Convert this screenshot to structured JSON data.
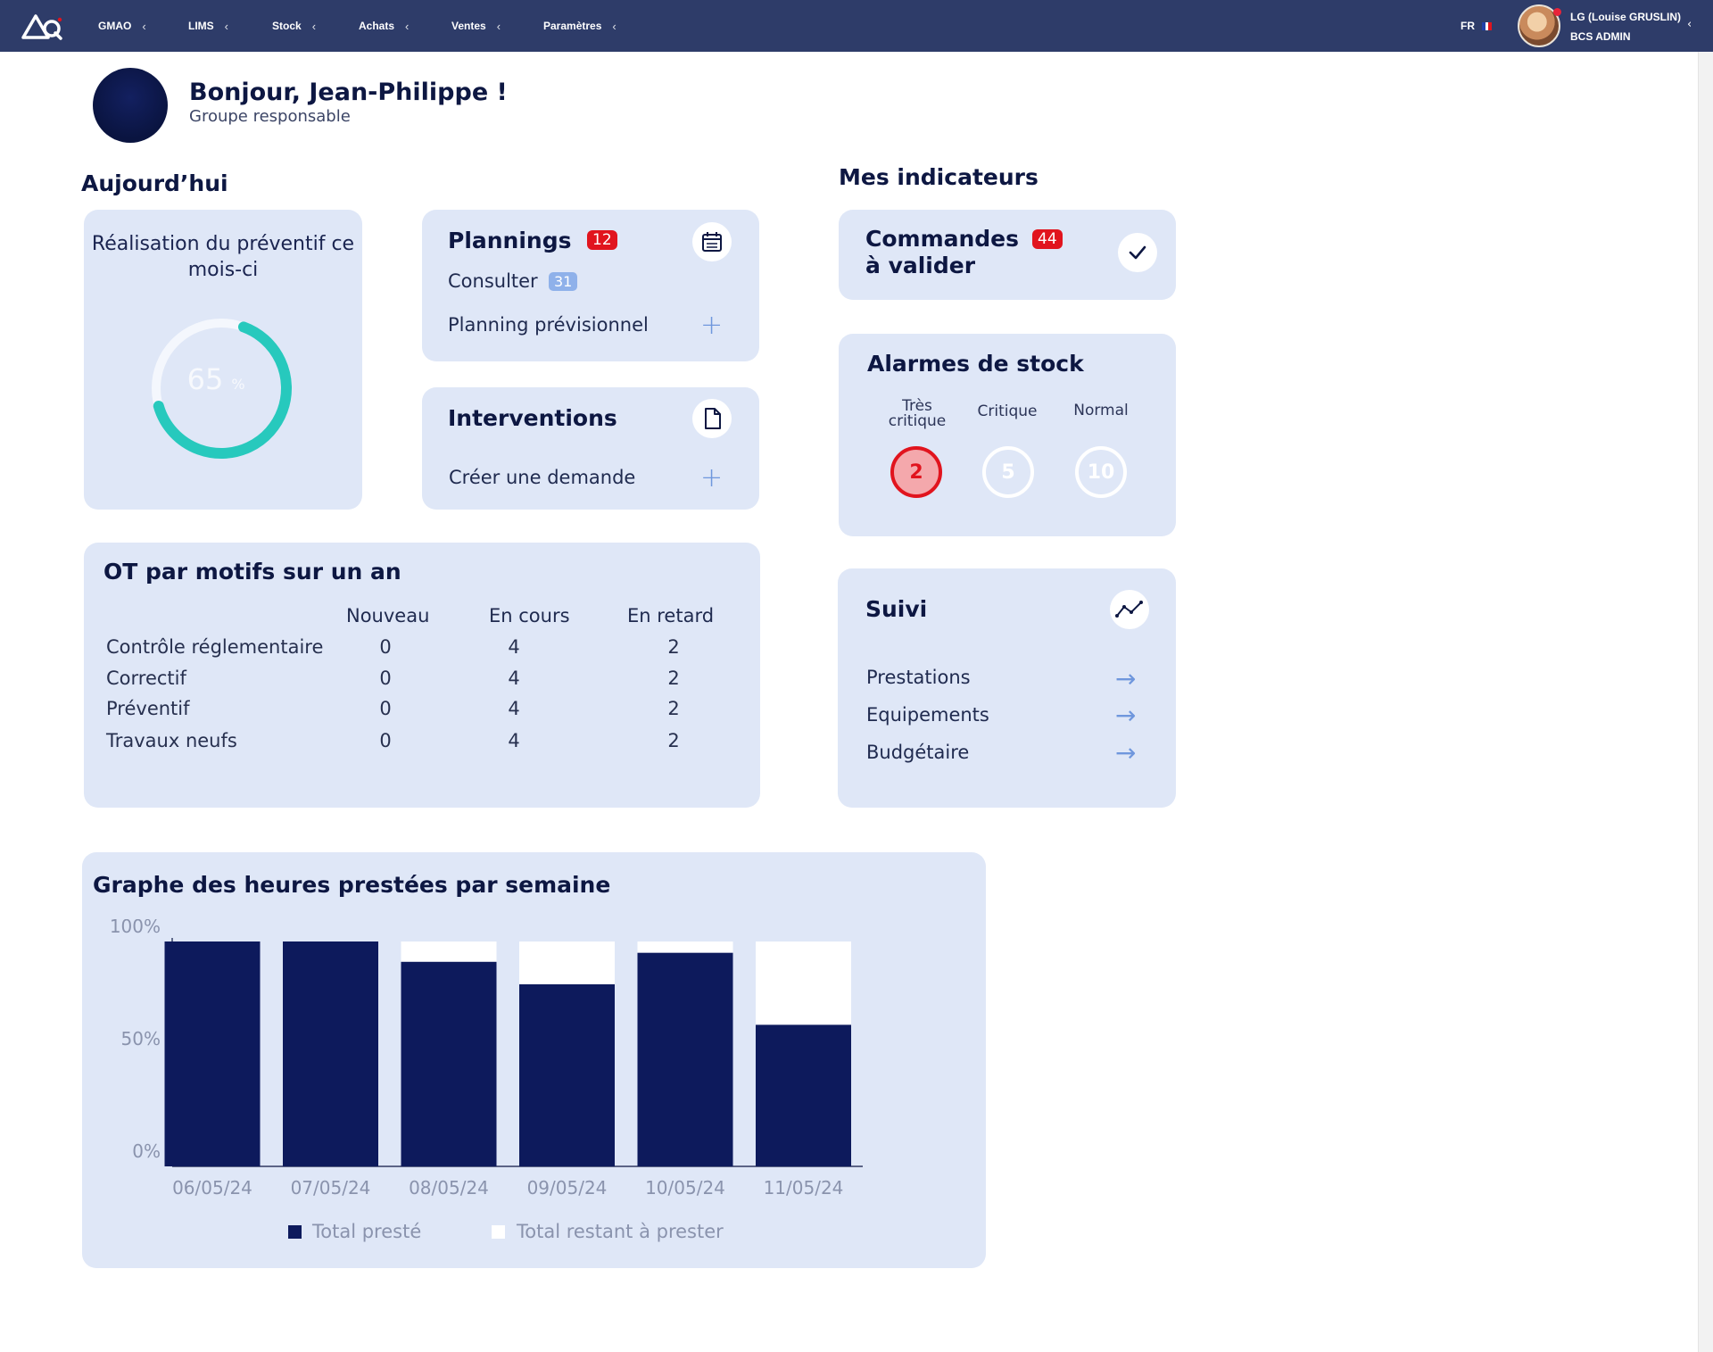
{
  "topbar": {
    "nav": [
      {
        "label": "GMAO"
      },
      {
        "label": "LIMS"
      },
      {
        "label": "Stock"
      },
      {
        "label": "Achats"
      },
      {
        "label": "Ventes"
      },
      {
        "label": "Paramètres"
      }
    ],
    "language": "FR",
    "user_name": "LG (Louise GRUSLIN)",
    "user_role": "BCS ADMIN",
    "chevron": "‹"
  },
  "greeting": {
    "title": "Bonjour, Jean-Philippe !",
    "subtitle": "Groupe responsable"
  },
  "today": {
    "title": "Aujourd’hui",
    "realisation": {
      "title": "Réalisation du préventif ce mois-ci",
      "value": "65",
      "unit": "%",
      "progress_fraction": 0.65
    },
    "plannings": {
      "title": "Plannings",
      "badge": "12",
      "consult_label": "Consulter",
      "consult_badge": "31",
      "forecast_label": "Planning prévisionnel",
      "icon": "calendar-icon"
    },
    "interventions": {
      "title": "Interventions",
      "create_label": "Créer une demande",
      "icon": "document-icon"
    },
    "ot_table": {
      "title": "OT par motifs sur un an",
      "columns": [
        "Nouveau",
        "En cours",
        "En retard"
      ],
      "rows": [
        {
          "label": "Contrôle réglementaire",
          "values": [
            "0",
            "4",
            "2"
          ]
        },
        {
          "label": "Correctif",
          "values": [
            "0",
            "4",
            "2"
          ]
        },
        {
          "label": "Préventif",
          "values": [
            "0",
            "4",
            "2"
          ]
        },
        {
          "label": "Travaux neufs",
          "values": [
            "0",
            "4",
            "2"
          ]
        }
      ]
    }
  },
  "indicators": {
    "title": "Mes indicateurs",
    "orders": {
      "line1": "Commandes",
      "line2": "à valider",
      "badge": "44",
      "icon": "check-icon"
    },
    "stock_alarms": {
      "title": "Alarmes de stock",
      "items": [
        {
          "label_line1": "Très",
          "label_line2": "critique",
          "value": "2",
          "color": "#e1141e"
        },
        {
          "label_line1": "",
          "label_line2": "Critique",
          "value": "5",
          "color": "#ffffff"
        },
        {
          "label_line1": "",
          "label_line2": "Normal",
          "value": "10",
          "color": "#ffffff"
        }
      ]
    },
    "suivi": {
      "title": "Suivi",
      "icon": "trend-chart-icon",
      "items": [
        {
          "label": "Prestations"
        },
        {
          "label": "Equipements"
        },
        {
          "label": "Budgétaire"
        }
      ],
      "arrow": "→"
    }
  },
  "colors": {
    "topbar": "#2e3c69",
    "card": "#dfe7f7",
    "navy": "#0d1a5c",
    "accent_blue": "#6f97dd",
    "alert_red": "#e1141e",
    "teal": "#27c9bd"
  },
  "chart_data": {
    "type": "bar",
    "stacked": true,
    "title": "Graphe des heures prestées par semaine",
    "categories": [
      "06/05/24",
      "07/05/24",
      "08/05/24",
      "09/05/24",
      "10/05/24",
      "11/05/24"
    ],
    "series": [
      {
        "name": "Total presté",
        "values": [
          100,
          100,
          91,
          81,
          95,
          63
        ],
        "color": "#0d1a5c"
      },
      {
        "name": "Total restant à prester",
        "values": [
          0,
          0,
          9,
          19,
          5,
          37
        ],
        "color": "#ffffff"
      }
    ],
    "yticks": [
      "0%",
      "50%",
      "100%"
    ],
    "ylim": [
      0,
      100
    ],
    "xlabel": "",
    "ylabel": "",
    "legend": "bottom",
    "grid": false
  }
}
